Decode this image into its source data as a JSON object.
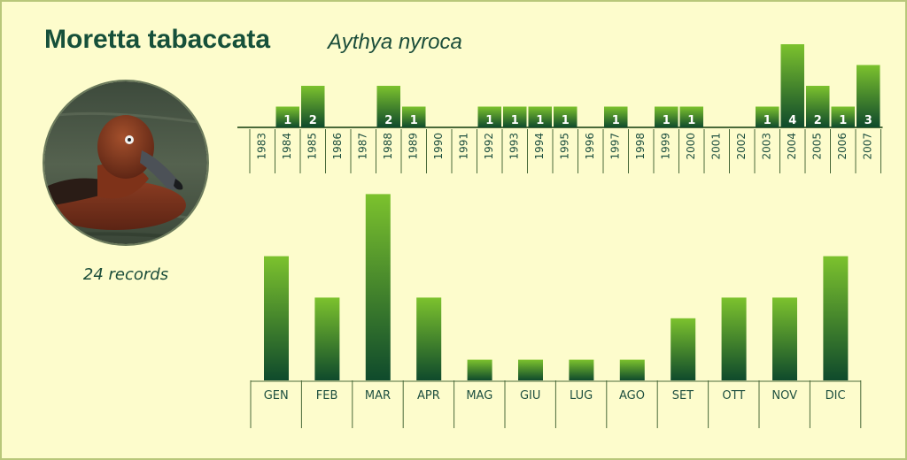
{
  "header": {
    "common_name": "Moretta tabaccata",
    "scientific_name": "Aythya nyroca"
  },
  "summary": {
    "records_label": "24 records"
  },
  "photo": {
    "subject": "ferruginous duck"
  },
  "colors": {
    "background": "#fdfccc",
    "bar_top": "#7cc22d",
    "bar_bottom": "#0f4a2c",
    "axis": "#4a6a3a",
    "text": "#16503a"
  },
  "chart_data": [
    {
      "type": "bar",
      "title": "",
      "xlabel": "",
      "ylabel": "",
      "categories": [
        "1983",
        "1984",
        "1985",
        "1986",
        "1987",
        "1988",
        "1989",
        "1990",
        "1991",
        "1992",
        "1993",
        "1994",
        "1995",
        "1996",
        "1997",
        "1998",
        "1999",
        "2000",
        "2001",
        "2002",
        "2003",
        "2004",
        "2005",
        "2006",
        "2007"
      ],
      "values": [
        0,
        1,
        2,
        0,
        0,
        2,
        1,
        0,
        0,
        1,
        1,
        1,
        1,
        0,
        1,
        0,
        1,
        1,
        0,
        0,
        1,
        4,
        2,
        1,
        3
      ],
      "ylim": [
        0,
        4
      ],
      "grid": false,
      "data_labels": true
    },
    {
      "type": "bar",
      "title": "",
      "xlabel": "",
      "ylabel": "",
      "categories": [
        "GEN",
        "FEB",
        "MAR",
        "APR",
        "MAG",
        "GIU",
        "LUG",
        "AGO",
        "SET",
        "OTT",
        "NOV",
        "DIC"
      ],
      "values": [
        6,
        4,
        9,
        4,
        1,
        1,
        1,
        1,
        3,
        4,
        4,
        6
      ],
      "ylim": [
        0,
        9
      ],
      "grid": false,
      "data_labels": false
    }
  ]
}
